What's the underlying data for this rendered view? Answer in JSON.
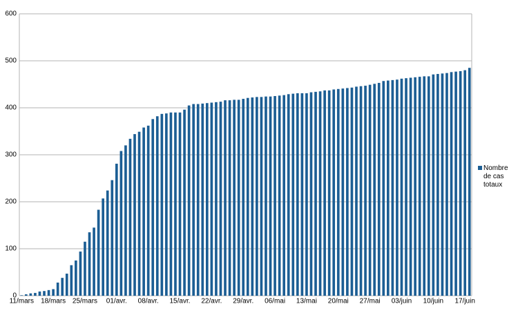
{
  "chart_data": {
    "type": "bar",
    "categories": [
      "11/mars",
      null,
      null,
      null,
      null,
      null,
      null,
      "18/mars",
      null,
      null,
      null,
      null,
      null,
      null,
      "25/mars",
      null,
      null,
      null,
      null,
      null,
      null,
      "01/avr.",
      null,
      null,
      null,
      null,
      null,
      null,
      "08/avr.",
      null,
      null,
      null,
      null,
      null,
      null,
      "15/avr.",
      null,
      null,
      null,
      null,
      null,
      null,
      "22/avr.",
      null,
      null,
      null,
      null,
      null,
      null,
      "29/avr.",
      null,
      null,
      null,
      null,
      null,
      null,
      "06/mai",
      null,
      null,
      null,
      null,
      null,
      null,
      "13/mai",
      null,
      null,
      null,
      null,
      null,
      null,
      "20/mai",
      null,
      null,
      null,
      null,
      null,
      null,
      "27/mai",
      null,
      null,
      null,
      null,
      null,
      null,
      "03/juin",
      null,
      null,
      null,
      null,
      null,
      null,
      "10/juin",
      null,
      null,
      null,
      null,
      null,
      null,
      "17/juin",
      null
    ],
    "series": [
      {
        "name": "Nombre de cas totaux",
        "color": "#1c5e94",
        "values": [
          1,
          3,
          5,
          6,
          9,
          10,
          12,
          14,
          28,
          38,
          47,
          65,
          75,
          94,
          115,
          135,
          145,
          183,
          207,
          224,
          246,
          281,
          308,
          320,
          334,
          344,
          349,
          358,
          362,
          376,
          382,
          387,
          388,
          390,
          390,
          390,
          396,
          405,
          408,
          408,
          409,
          410,
          411,
          412,
          413,
          416,
          416,
          417,
          417,
          419,
          421,
          422,
          423,
          423,
          424,
          424,
          425,
          426,
          427,
          429,
          430,
          431,
          431,
          431,
          433,
          434,
          435,
          437,
          437,
          439,
          440,
          441,
          442,
          443,
          445,
          446,
          447,
          449,
          451,
          453,
          457,
          458,
          459,
          460,
          462,
          463,
          464,
          465,
          466,
          467,
          467,
          471,
          472,
          473,
          474,
          476,
          477,
          478,
          480,
          485
        ]
      }
    ],
    "ylim": [
      0,
      600
    ],
    "yticks": [
      0,
      100,
      200,
      300,
      400,
      500,
      600
    ],
    "grid": true,
    "legend": "right"
  }
}
